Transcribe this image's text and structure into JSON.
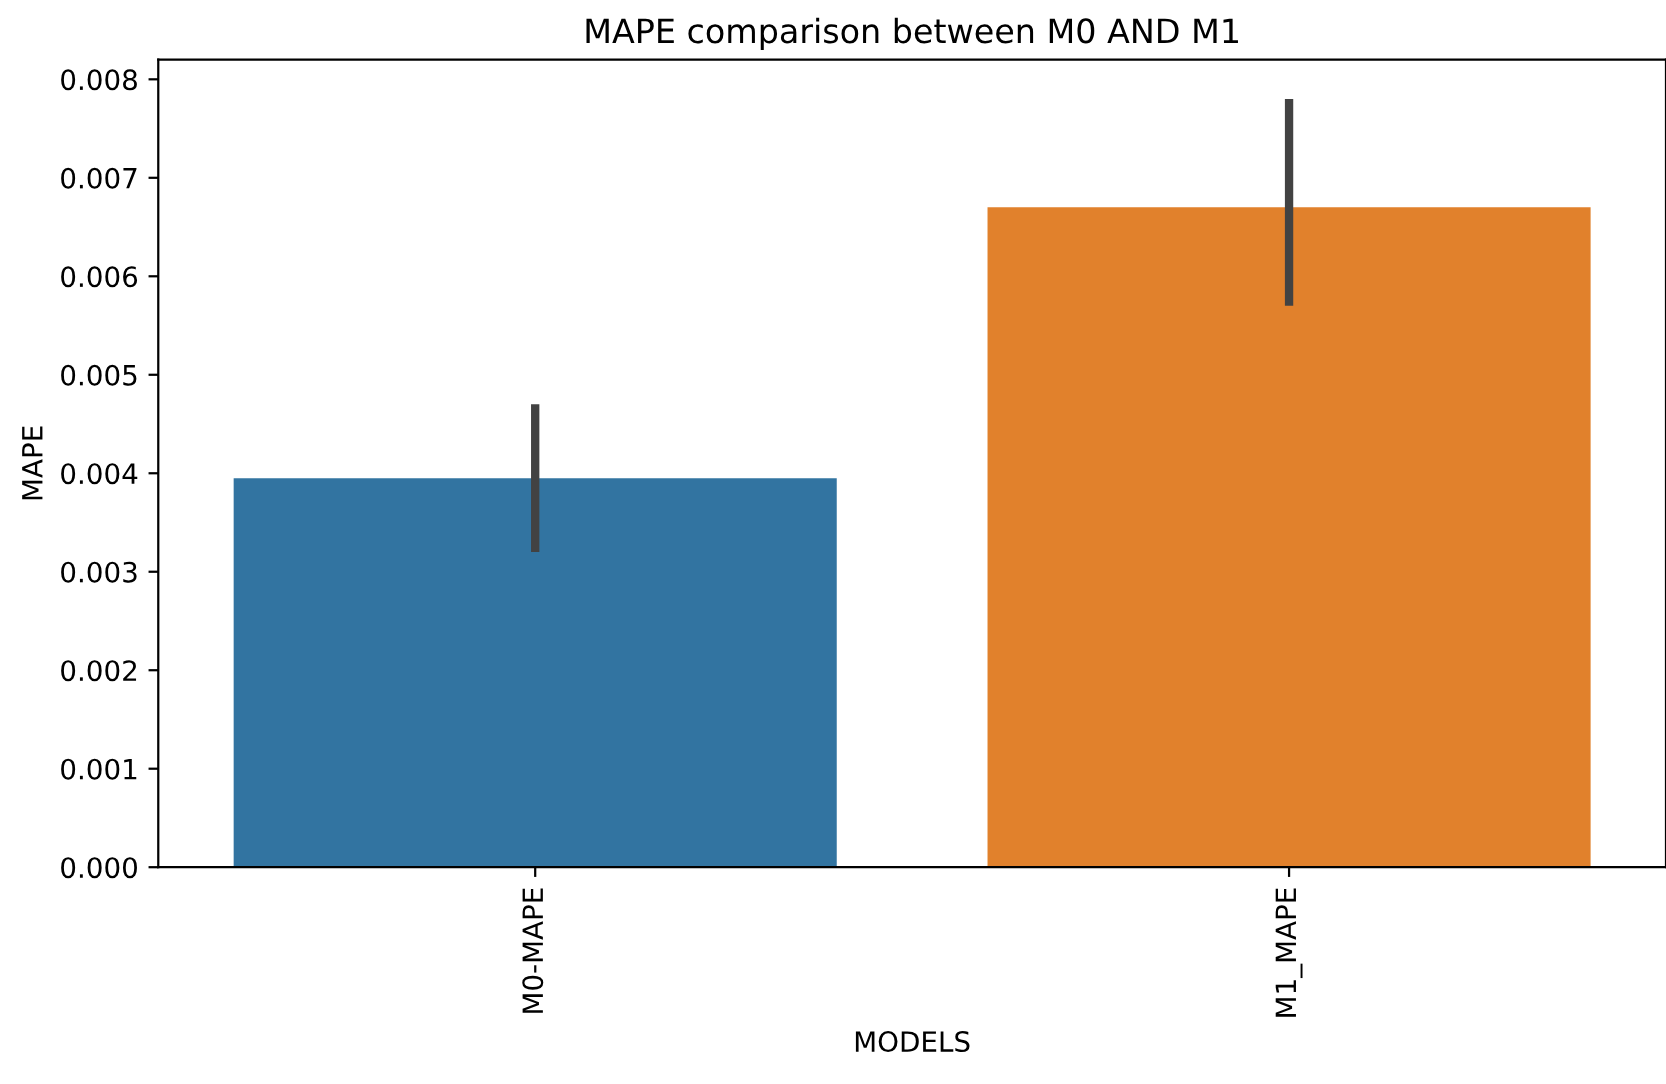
{
  "chart_data": {
    "type": "bar",
    "title": "MAPE comparison between M0 AND M1",
    "xlabel": "MODELS",
    "ylabel": "MAPE",
    "categories": [
      "M0-MAPE",
      "M1_MAPE"
    ],
    "values": [
      0.00395,
      0.0067
    ],
    "colors": [
      "#3274a1",
      "#e1812c"
    ],
    "errors": [
      [
        0.0032,
        0.0047
      ],
      [
        0.0057,
        0.0078
      ]
    ],
    "ylim": [
      0,
      0.0082
    ],
    "yticks": [
      {
        "value": 0,
        "label": "0.000"
      },
      {
        "value": 0.001,
        "label": "0.001"
      },
      {
        "value": 0.002,
        "label": "0.002"
      },
      {
        "value": 0.003,
        "label": "0.003"
      },
      {
        "value": 0.004,
        "label": "0.004"
      },
      {
        "value": 0.005,
        "label": "0.005"
      },
      {
        "value": 0.006,
        "label": "0.006"
      },
      {
        "value": 0.007,
        "label": "0.007"
      },
      {
        "value": 0.008,
        "label": "0.008"
      }
    ],
    "grid": false
  }
}
